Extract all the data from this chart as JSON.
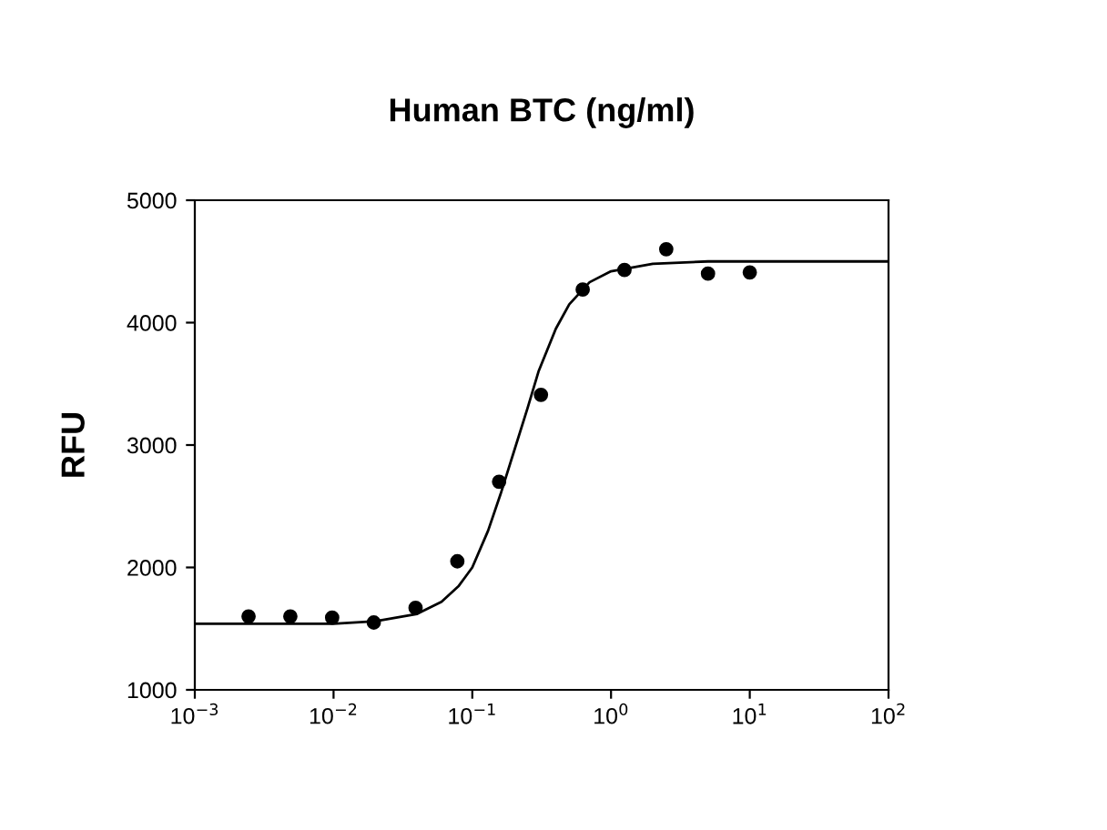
{
  "chart_data": {
    "type": "scatter",
    "title": "Human BTC (ng/ml)",
    "ylabel": "RFU",
    "log": "x",
    "grid": false,
    "legend": false,
    "marker": "circle",
    "xlim": [
      0.001,
      100
    ],
    "xticks": [
      {
        "value": 0.001,
        "label": "10$^{−3}$"
      },
      {
        "value": 0.01,
        "label": "10$^{−2}$"
      },
      {
        "value": 0.1,
        "label": "10$^{−1}$"
      },
      {
        "value": 1,
        "label": "10$^{0}$"
      },
      {
        "value": 10,
        "label": "10$^{1}$"
      },
      {
        "value": 100,
        "label": "10$^{2}$"
      }
    ],
    "ylim": [
      1000,
      5000
    ],
    "yticks": [
      1000,
      2000,
      3000,
      4000,
      5000
    ],
    "series": [
      {
        "color": "#000000",
        "x": [
          0.00244,
          0.00488,
          0.00977,
          0.0195,
          0.039,
          0.078,
          0.156,
          0.3125,
          0.625,
          1.25,
          2.5,
          5,
          10
        ],
        "values": [
          1600,
          1600,
          1590,
          1550,
          1670,
          2050,
          2700,
          3410,
          4270,
          4430,
          4600,
          4400,
          4410
        ]
      },
      {
        "type": "line",
        "color": "#000000",
        "line_style": "solid",
        "marker": "none",
        "x": [
          0.001,
          0.01,
          0.02,
          0.04,
          0.06,
          0.08,
          0.1,
          0.13,
          0.16,
          0.2,
          0.25,
          0.3,
          0.4,
          0.5,
          0.7,
          1,
          2,
          5,
          100
        ],
        "values": [
          1540,
          1540,
          1560,
          1620,
          1720,
          1850,
          2000,
          2300,
          2600,
          2950,
          3300,
          3600,
          3950,
          4150,
          4330,
          4420,
          4480,
          4500,
          4500
        ]
      }
    ]
  }
}
